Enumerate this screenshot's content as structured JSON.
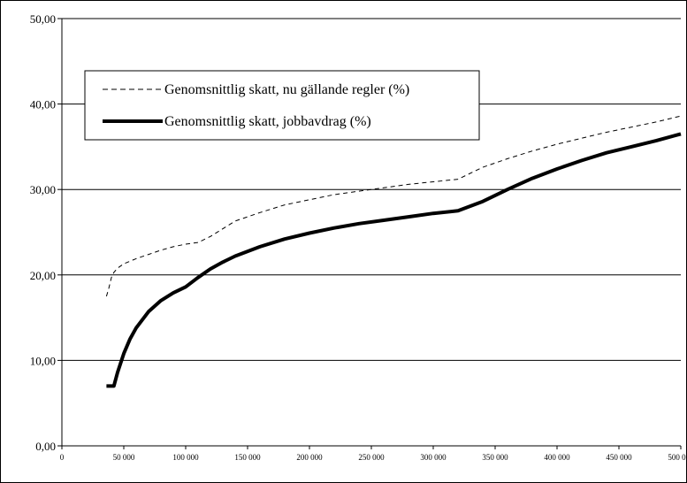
{
  "chart_data": {
    "type": "line",
    "title": "",
    "xlabel": "",
    "ylabel": "",
    "xlim": [
      0,
      500000
    ],
    "ylim": [
      0,
      50
    ],
    "x_ticks": [
      "0",
      "50 000",
      "100 000",
      "150 000",
      "200 000",
      "250 000",
      "300 000",
      "350 000",
      "400 000",
      "450 000",
      "500 000"
    ],
    "y_ticks": [
      "0,00",
      "10,00",
      "20,00",
      "30,00",
      "40,00",
      "50,00"
    ],
    "grid": "horizontal",
    "legend_position": "top-left",
    "series": [
      {
        "name": "Genomsnittlig skatt, nu gällande regler (%)",
        "style": "dashed",
        "color": "#000000",
        "x": [
          36000,
          38000,
          40000,
          42000,
          45000,
          50000,
          60000,
          70000,
          80000,
          90000,
          100000,
          110000,
          120000,
          140000,
          160000,
          180000,
          200000,
          220000,
          240000,
          260000,
          280000,
          300000,
          320000,
          340000,
          360000,
          380000,
          400000,
          420000,
          440000,
          460000,
          480000,
          500000
        ],
        "y": [
          17.5,
          18.5,
          19.7,
          20.3,
          20.8,
          21.3,
          21.9,
          22.4,
          22.9,
          23.3,
          23.6,
          23.8,
          24.5,
          26.3,
          27.3,
          28.2,
          28.8,
          29.4,
          29.8,
          30.2,
          30.6,
          30.9,
          31.2,
          32.6,
          33.6,
          34.5,
          35.3,
          36.0,
          36.7,
          37.3,
          37.9,
          38.6
        ]
      },
      {
        "name": "Genomsnittlig skatt, jobbavdrag (%)",
        "style": "solid-thick",
        "color": "#000000",
        "x": [
          36000,
          42000,
          45000,
          50000,
          55000,
          60000,
          70000,
          80000,
          90000,
          100000,
          110000,
          120000,
          130000,
          140000,
          160000,
          180000,
          200000,
          220000,
          240000,
          260000,
          280000,
          300000,
          320000,
          340000,
          360000,
          380000,
          400000,
          420000,
          440000,
          460000,
          480000,
          500000
        ],
        "y": [
          7.0,
          7.0,
          8.6,
          10.8,
          12.5,
          13.8,
          15.7,
          17.0,
          17.9,
          18.6,
          19.7,
          20.7,
          21.5,
          22.2,
          23.3,
          24.2,
          24.9,
          25.5,
          26.0,
          26.4,
          26.8,
          27.2,
          27.5,
          28.6,
          30.0,
          31.3,
          32.4,
          33.4,
          34.3,
          35.0,
          35.7,
          36.5
        ]
      }
    ]
  }
}
